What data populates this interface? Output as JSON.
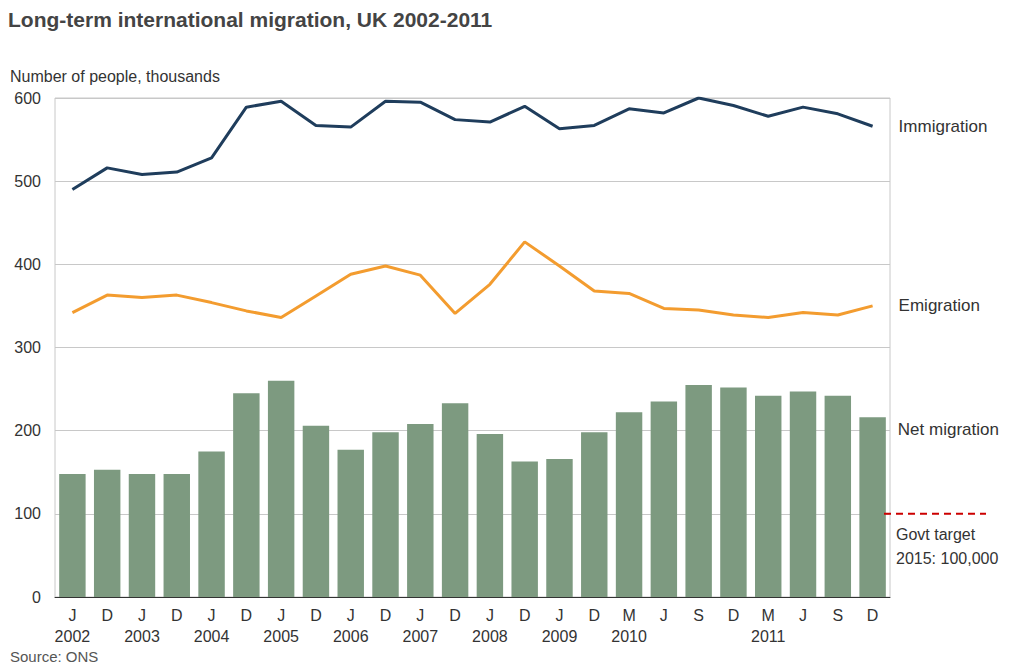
{
  "chart_data": {
    "type": "bar",
    "title": "Long-term international migration, UK 2002-2011",
    "y_label": "Number of people, thousands",
    "source": "Source: ONS",
    "categories": [
      "J",
      "D",
      "J",
      "D",
      "J",
      "D",
      "J",
      "D",
      "J",
      "D",
      "J",
      "D",
      "J",
      "D",
      "J",
      "D",
      "M",
      "J",
      "S",
      "D",
      "M",
      "J",
      "S",
      "D"
    ],
    "years": [
      "2002",
      null,
      "2003",
      null,
      "2004",
      null,
      "2005",
      null,
      "2006",
      null,
      "2007",
      null,
      "2008",
      null,
      "2009",
      null,
      "2010",
      null,
      null,
      null,
      "2011",
      null,
      null,
      null
    ],
    "series": [
      {
        "name": "Immigration",
        "type": "line",
        "color": "#1f3d5c",
        "values": [
          490,
          516,
          508,
          511,
          528,
          589,
          596,
          567,
          565,
          596,
          595,
          574,
          571,
          590,
          563,
          567,
          587,
          582,
          600,
          591,
          578,
          589,
          581,
          566
        ]
      },
      {
        "name": "Emigration",
        "type": "line",
        "color": "#f39c2f",
        "values": [
          342,
          363,
          360,
          363,
          354,
          344,
          336,
          362,
          388,
          398,
          387,
          341,
          376,
          427,
          398,
          368,
          365,
          347,
          345,
          339,
          336,
          342,
          339,
          350
        ]
      },
      {
        "name": "Net migration",
        "type": "bar",
        "color": "#7d9a80",
        "values": [
          148,
          153,
          148,
          148,
          175,
          245,
          260,
          206,
          177,
          198,
          208,
          233,
          196,
          163,
          166,
          198,
          222,
          235,
          255,
          252,
          242,
          247,
          242,
          216
        ]
      }
    ],
    "ylim": [
      0,
      600
    ],
    "yticks": [
      0,
      100,
      200,
      300,
      400,
      500,
      600
    ],
    "grid": true,
    "annotation": {
      "lines": [
        "Govt target",
        "2015: 100,000"
      ],
      "value": 100,
      "color": "#cc0000",
      "line_style": "dashed"
    }
  }
}
